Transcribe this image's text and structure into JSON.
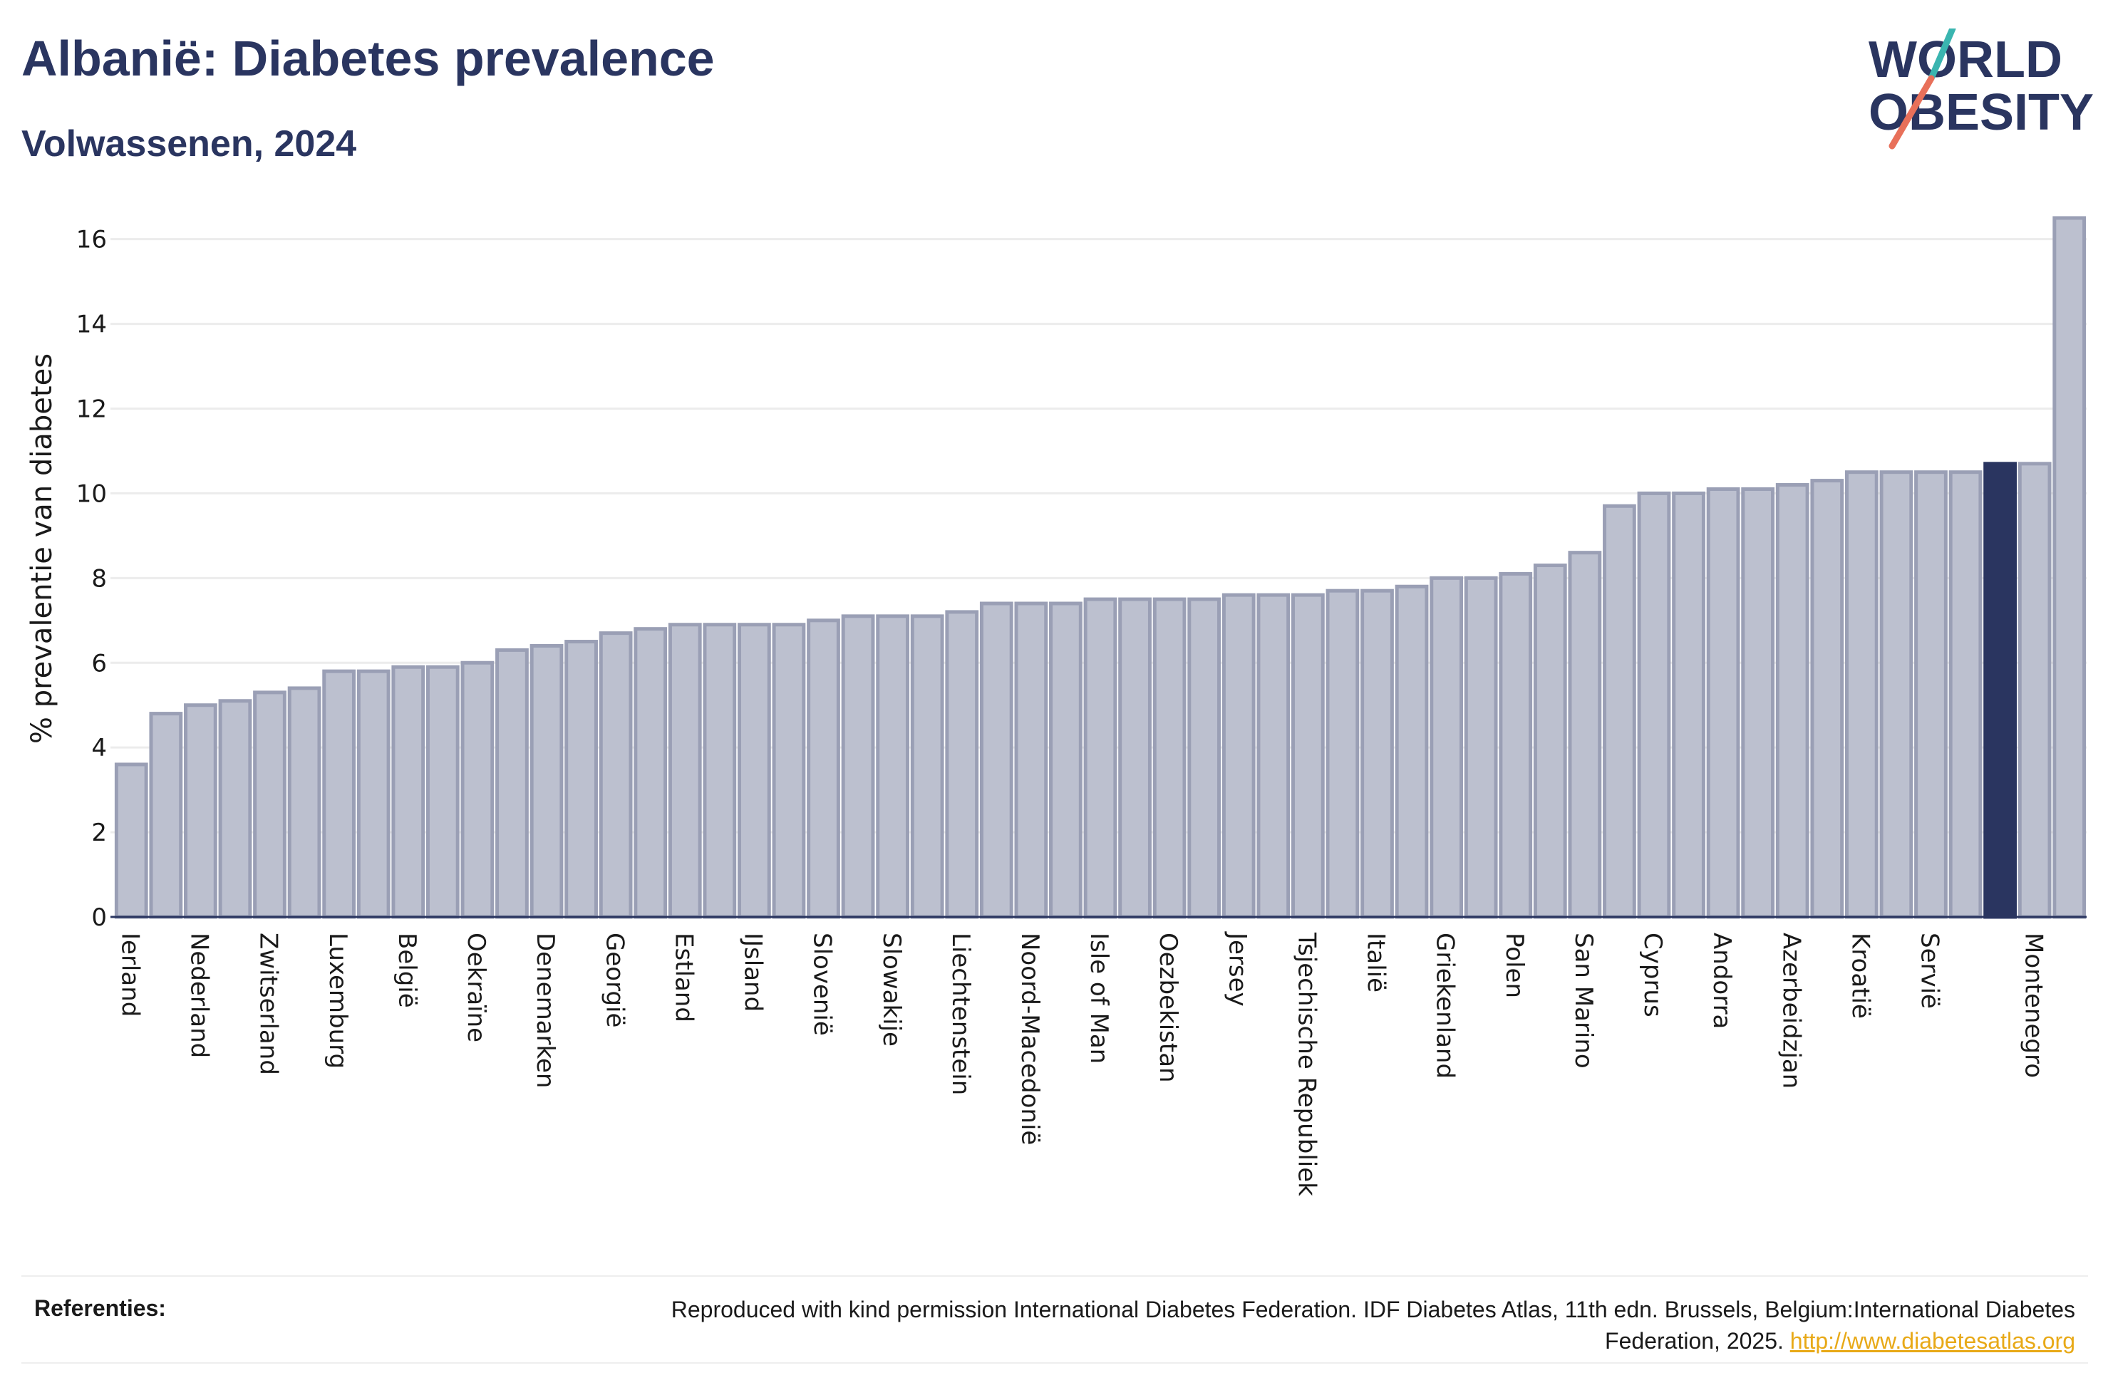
{
  "header": {
    "title": "Albanië: Diabetes prevalence",
    "subtitle": "Volwassenen, 2024"
  },
  "logo": {
    "line1": "WORLD",
    "line2": "OBESITY",
    "accent_colors": [
      "#3ab5b0",
      "#e8705a"
    ]
  },
  "colors": {
    "bar": "#bcc0cf",
    "bar_border": "#9a9fb5",
    "highlight": "#2a3560",
    "grid": "#ececec"
  },
  "chart_data": {
    "type": "bar",
    "xlabel": "",
    "ylabel": "% prevalentie van diabetes",
    "ylim": [
      0,
      16.6
    ],
    "yticks": [
      0,
      2,
      4,
      6,
      8,
      10,
      12,
      14,
      16
    ],
    "highlight_index": 54,
    "tick_label_every": 2,
    "categories": [
      "Ierland",
      "",
      "Nederland",
      "",
      "Zwitserland",
      "",
      "Luxemburg",
      "",
      "België",
      "",
      "Oekraïne",
      "",
      "Denemarken",
      "",
      "Georgië",
      "",
      "Estland",
      "",
      "IJsland",
      "",
      "Slovenië",
      "",
      "Slowakije",
      "",
      "Liechtenstein",
      "",
      "Noord-Macedonië",
      "",
      "Isle of Man",
      "",
      "Oezbekistan",
      "",
      "Jersey",
      "",
      "Tsjechische Republiek",
      "",
      "Italië",
      "",
      "Griekenland",
      "",
      "Polen",
      "",
      "San Marino",
      "",
      "Cyprus",
      "",
      "Andorra",
      "",
      "Azerbeidzjan",
      "",
      "Kroatië",
      "",
      "Servië",
      "",
      "",
      "Montenegro",
      ""
    ],
    "values": [
      3.6,
      4.8,
      5.0,
      5.1,
      5.3,
      5.4,
      5.8,
      5.8,
      5.9,
      5.9,
      6.0,
      6.3,
      6.4,
      6.5,
      6.7,
      6.8,
      6.9,
      6.9,
      6.9,
      6.9,
      7.0,
      7.1,
      7.1,
      7.1,
      7.2,
      7.4,
      7.4,
      7.4,
      7.5,
      7.5,
      7.5,
      7.5,
      7.6,
      7.6,
      7.6,
      7.7,
      7.7,
      7.8,
      8.0,
      8.0,
      8.1,
      8.3,
      8.6,
      9.7,
      10.0,
      10.0,
      10.1,
      10.1,
      10.2,
      10.3,
      10.5,
      10.5,
      10.5,
      10.5,
      10.7,
      10.7,
      16.5
    ]
  },
  "footer": {
    "ref_label": "Referenties:",
    "ref_text": "Reproduced with kind permission International Diabetes Federation. IDF Diabetes Atlas, 11th edn. Brussels, Belgium:International Diabetes Federation, 2025.",
    "ref_link": "http://www.diabetesatlas.org"
  }
}
